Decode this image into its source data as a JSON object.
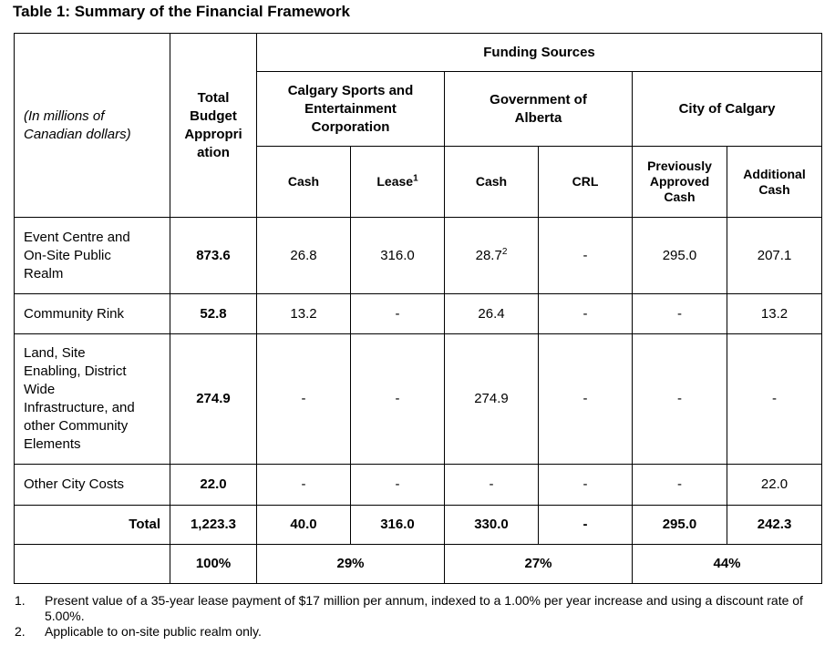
{
  "title": "Table 1: Summary of the Financial Framework",
  "headers": {
    "funding_sources": "Funding Sources",
    "units_line1": "(In millions of",
    "units_line2": "Canadian dollars)",
    "total_budget": [
      "Total",
      "Budget",
      "Appropri",
      "ation"
    ],
    "groups": {
      "csec": [
        "Calgary Sports and",
        "Entertainment",
        "Corporation"
      ],
      "goa": [
        "Government of",
        "Alberta"
      ],
      "city": "City of Calgary"
    },
    "sub": {
      "csec_cash": "Cash",
      "csec_lease": "Lease",
      "csec_lease_sup": "1",
      "goa_cash": "Cash",
      "goa_crl": "CRL",
      "prev_cash": [
        "Previously",
        "Approved",
        "Cash"
      ],
      "add_cash": [
        "Additional",
        "Cash"
      ]
    }
  },
  "rows": [
    {
      "label": [
        "Event Centre and",
        "On-Site Public",
        "Realm"
      ],
      "total": "873.6",
      "csec_cash": "26.8",
      "csec_lease": "316.0",
      "goa_cash": "28.7",
      "goa_cash_sup": "2",
      "goa_crl": "-",
      "prev_cash": "295.0",
      "add_cash": "207.1"
    },
    {
      "label": [
        "Community Rink"
      ],
      "total": "52.8",
      "csec_cash": "13.2",
      "csec_lease": "-",
      "goa_cash": "26.4",
      "goa_crl": "-",
      "prev_cash": "-",
      "add_cash": "13.2"
    },
    {
      "label": [
        "Land, Site",
        "Enabling, District",
        "Wide",
        "Infrastructure, and",
        "other Community",
        "Elements"
      ],
      "total": "274.9",
      "csec_cash": "-",
      "csec_lease": "-",
      "goa_cash": "274.9",
      "goa_crl": "-",
      "prev_cash": "-",
      "add_cash": "-"
    },
    {
      "label": [
        "Other City Costs"
      ],
      "total": "22.0",
      "csec_cash": "-",
      "csec_lease": "-",
      "goa_cash": "-",
      "goa_crl": "-",
      "prev_cash": "-",
      "add_cash": "22.0"
    }
  ],
  "total_row": {
    "label": "Total",
    "total": "1,223.3",
    "csec_cash": "40.0",
    "csec_lease": "316.0",
    "goa_cash": "330.0",
    "goa_crl": "-",
    "prev_cash": "295.0",
    "add_cash": "242.3"
  },
  "percent_row": {
    "total": "100%",
    "csec": "29%",
    "goa": "27%",
    "city": "44%"
  },
  "notes": [
    {
      "num": "1.",
      "text": "Present value of a 35-year lease payment of $17 million per annum, indexed to a 1.00% per year increase and using a discount rate of 5.00%."
    },
    {
      "num": "2.",
      "text": "Applicable to on-site public realm only."
    }
  ]
}
